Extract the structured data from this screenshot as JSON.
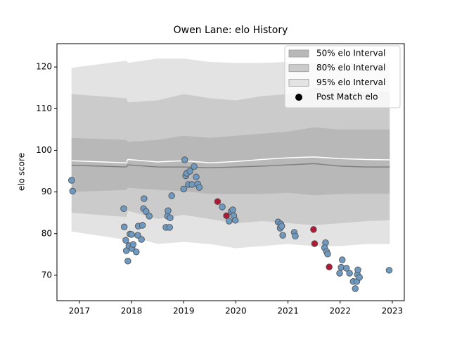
{
  "chart_data": {
    "type": "interval",
    "title": "Owen Lane: elo History",
    "ylabel": "elo score",
    "xlim": [
      2016.57,
      2023.23
    ],
    "ylim": [
      63.9,
      125.6
    ],
    "xticks": [
      2017,
      2018,
      2019,
      2020,
      2021,
      2022,
      2023
    ],
    "yticks": [
      70,
      80,
      90,
      100,
      110,
      120
    ],
    "legend": "upper right",
    "band_x": [
      2016.85,
      2017.9,
      2017.93,
      2018.5,
      2019.0,
      2019.5,
      2020.0,
      2020.5,
      2021.0,
      2021.5,
      2022.0,
      2022.5,
      2022.95
    ],
    "bands": [
      {
        "name": "95% elo Interval",
        "color": "#e3e3e3",
        "upper": [
          119.8,
          121.5,
          121.0,
          122.0,
          122.0,
          121.2,
          121.0,
          121.0,
          121.2,
          121.0,
          121.0,
          121.0,
          121.0
        ],
        "lower": [
          80.5,
          78.5,
          79.5,
          77.5,
          78.0,
          77.5,
          76.5,
          77.0,
          77.5,
          77.0,
          77.0,
          77.5,
          77.5
        ]
      },
      {
        "name": "80% elo Interval",
        "color": "#cbcbcb",
        "upper": [
          113.5,
          112.5,
          111.5,
          112.0,
          113.5,
          112.5,
          112.0,
          113.0,
          113.5,
          115.0,
          114.5,
          114.0,
          114.0
        ],
        "lower": [
          85.0,
          84.0,
          85.5,
          83.5,
          84.5,
          83.5,
          82.5,
          83.0,
          82.5,
          82.0,
          82.5,
          83.0,
          83.2
        ]
      },
      {
        "name": "50% elo Interval",
        "color": "#b8b8b8",
        "upper": [
          103.0,
          102.5,
          102.0,
          102.5,
          103.5,
          103.0,
          103.5,
          104.0,
          104.5,
          105.5,
          105.0,
          105.0,
          105.0
        ],
        "lower": [
          90.0,
          90.5,
          91.0,
          90.5,
          90.2,
          89.5,
          89.5,
          89.5,
          89.8,
          89.2,
          89.5,
          89.6,
          89.6
        ]
      }
    ],
    "lines": [
      {
        "color": "#ffffff",
        "values": [
          97.5,
          97.0,
          97.8,
          97.2,
          97.5,
          97.0,
          97.3,
          97.8,
          98.2,
          98.4,
          98.0,
          97.8,
          97.7
        ]
      },
      {
        "color": "#808080",
        "values": [
          96.4,
          96.0,
          96.5,
          96.0,
          96.0,
          95.8,
          96.0,
          96.2,
          96.5,
          96.8,
          96.2,
          96.0,
          96.0
        ]
      }
    ],
    "points": {
      "name": "Post Match elo",
      "legend_color": "#000000",
      "edge_color": "#555555",
      "x": [
        2016.85,
        2016.87,
        2017.85,
        2017.86,
        2017.89,
        2017.9,
        2017.93,
        2017.95,
        2017.97,
        2018.0,
        2018.01,
        2018.03,
        2018.09,
        2018.12,
        2018.13,
        2018.19,
        2018.21,
        2018.23,
        2018.24,
        2018.28,
        2018.34,
        2018.66,
        2018.69,
        2018.7,
        2018.73,
        2018.74,
        2018.77,
        2019.0,
        2019.02,
        2019.04,
        2019.06,
        2019.09,
        2019.12,
        2019.16,
        2019.2,
        2019.24,
        2019.27,
        2019.3,
        2019.65,
        2019.74,
        2019.82,
        2019.87,
        2019.91,
        2019.94,
        2019.96,
        2019.99,
        2020.81,
        2020.86,
        2020.85,
        2020.88,
        2020.9,
        2021.12,
        2021.14,
        2021.49,
        2021.51,
        2021.72,
        2021.7,
        2021.74,
        2021.76,
        2021.79,
        2021.99,
        2022.02,
        2022.04,
        2022.12,
        2022.18,
        2022.25,
        2022.29,
        2022.32,
        2022.33,
        2022.34,
        2022.37,
        2022.94
      ],
      "values": [
        92.8,
        90.2,
        86.0,
        81.6,
        78.4,
        75.9,
        73.4,
        77.1,
        79.9,
        79.8,
        76.4,
        77.4,
        75.6,
        79.6,
        81.8,
        78.6,
        82.0,
        86.0,
        88.4,
        85.3,
        84.2,
        81.5,
        84.2,
        85.5,
        81.5,
        83.8,
        89.1,
        90.7,
        97.7,
        93.9,
        94.5,
        91.8,
        95.0,
        91.8,
        96.1,
        93.6,
        91.9,
        91.1,
        87.7,
        86.4,
        84.3,
        83.0,
        85.3,
        85.7,
        84.3,
        83.2,
        82.8,
        82.3,
        81.3,
        81.8,
        79.6,
        80.3,
        79.4,
        81.0,
        77.6,
        77.8,
        76.6,
        75.7,
        75.1,
        72.0,
        70.5,
        71.9,
        73.7,
        71.7,
        70.5,
        68.5,
        66.8,
        68.5,
        70.2,
        71.3,
        69.5,
        71.2
      ],
      "colors": [
        "#6e99c0",
        "#6e99c0",
        "#6e99c0",
        "#6e99c0",
        "#6e99c0",
        "#6e99c0",
        "#6e99c0",
        "#6e99c0",
        "#6e99c0",
        "#6e99c0",
        "#6e99c0",
        "#6e99c0",
        "#6e99c0",
        "#6e99c0",
        "#6e99c0",
        "#6e99c0",
        "#6e99c0",
        "#6e99c0",
        "#6e99c0",
        "#6e99c0",
        "#6e99c0",
        "#6e99c0",
        "#6e99c0",
        "#6e99c0",
        "#6e99c0",
        "#6e99c0",
        "#6e99c0",
        "#6e99c0",
        "#6e99c0",
        "#6e99c0",
        "#6e99c0",
        "#6e99c0",
        "#6e99c0",
        "#6e99c0",
        "#6e99c0",
        "#6e99c0",
        "#6e99c0",
        "#6e99c0",
        "#b01835",
        "#6e99c0",
        "#b01835",
        "#6e99c0",
        "#6e99c0",
        "#6e99c0",
        "#6e99c0",
        "#6e99c0",
        "#6e99c0",
        "#6e99c0",
        "#6e99c0",
        "#6e99c0",
        "#6e99c0",
        "#6e99c0",
        "#6e99c0",
        "#b01835",
        "#b01835",
        "#6e99c0",
        "#6e99c0",
        "#6e99c0",
        "#6e99c0",
        "#b01835",
        "#6e99c0",
        "#6e99c0",
        "#6e99c0",
        "#6e99c0",
        "#6e99c0",
        "#6e99c0",
        "#6e99c0",
        "#6e99c0",
        "#6e99c0",
        "#6e99c0",
        "#6e99c0",
        "#6e99c0"
      ]
    }
  }
}
